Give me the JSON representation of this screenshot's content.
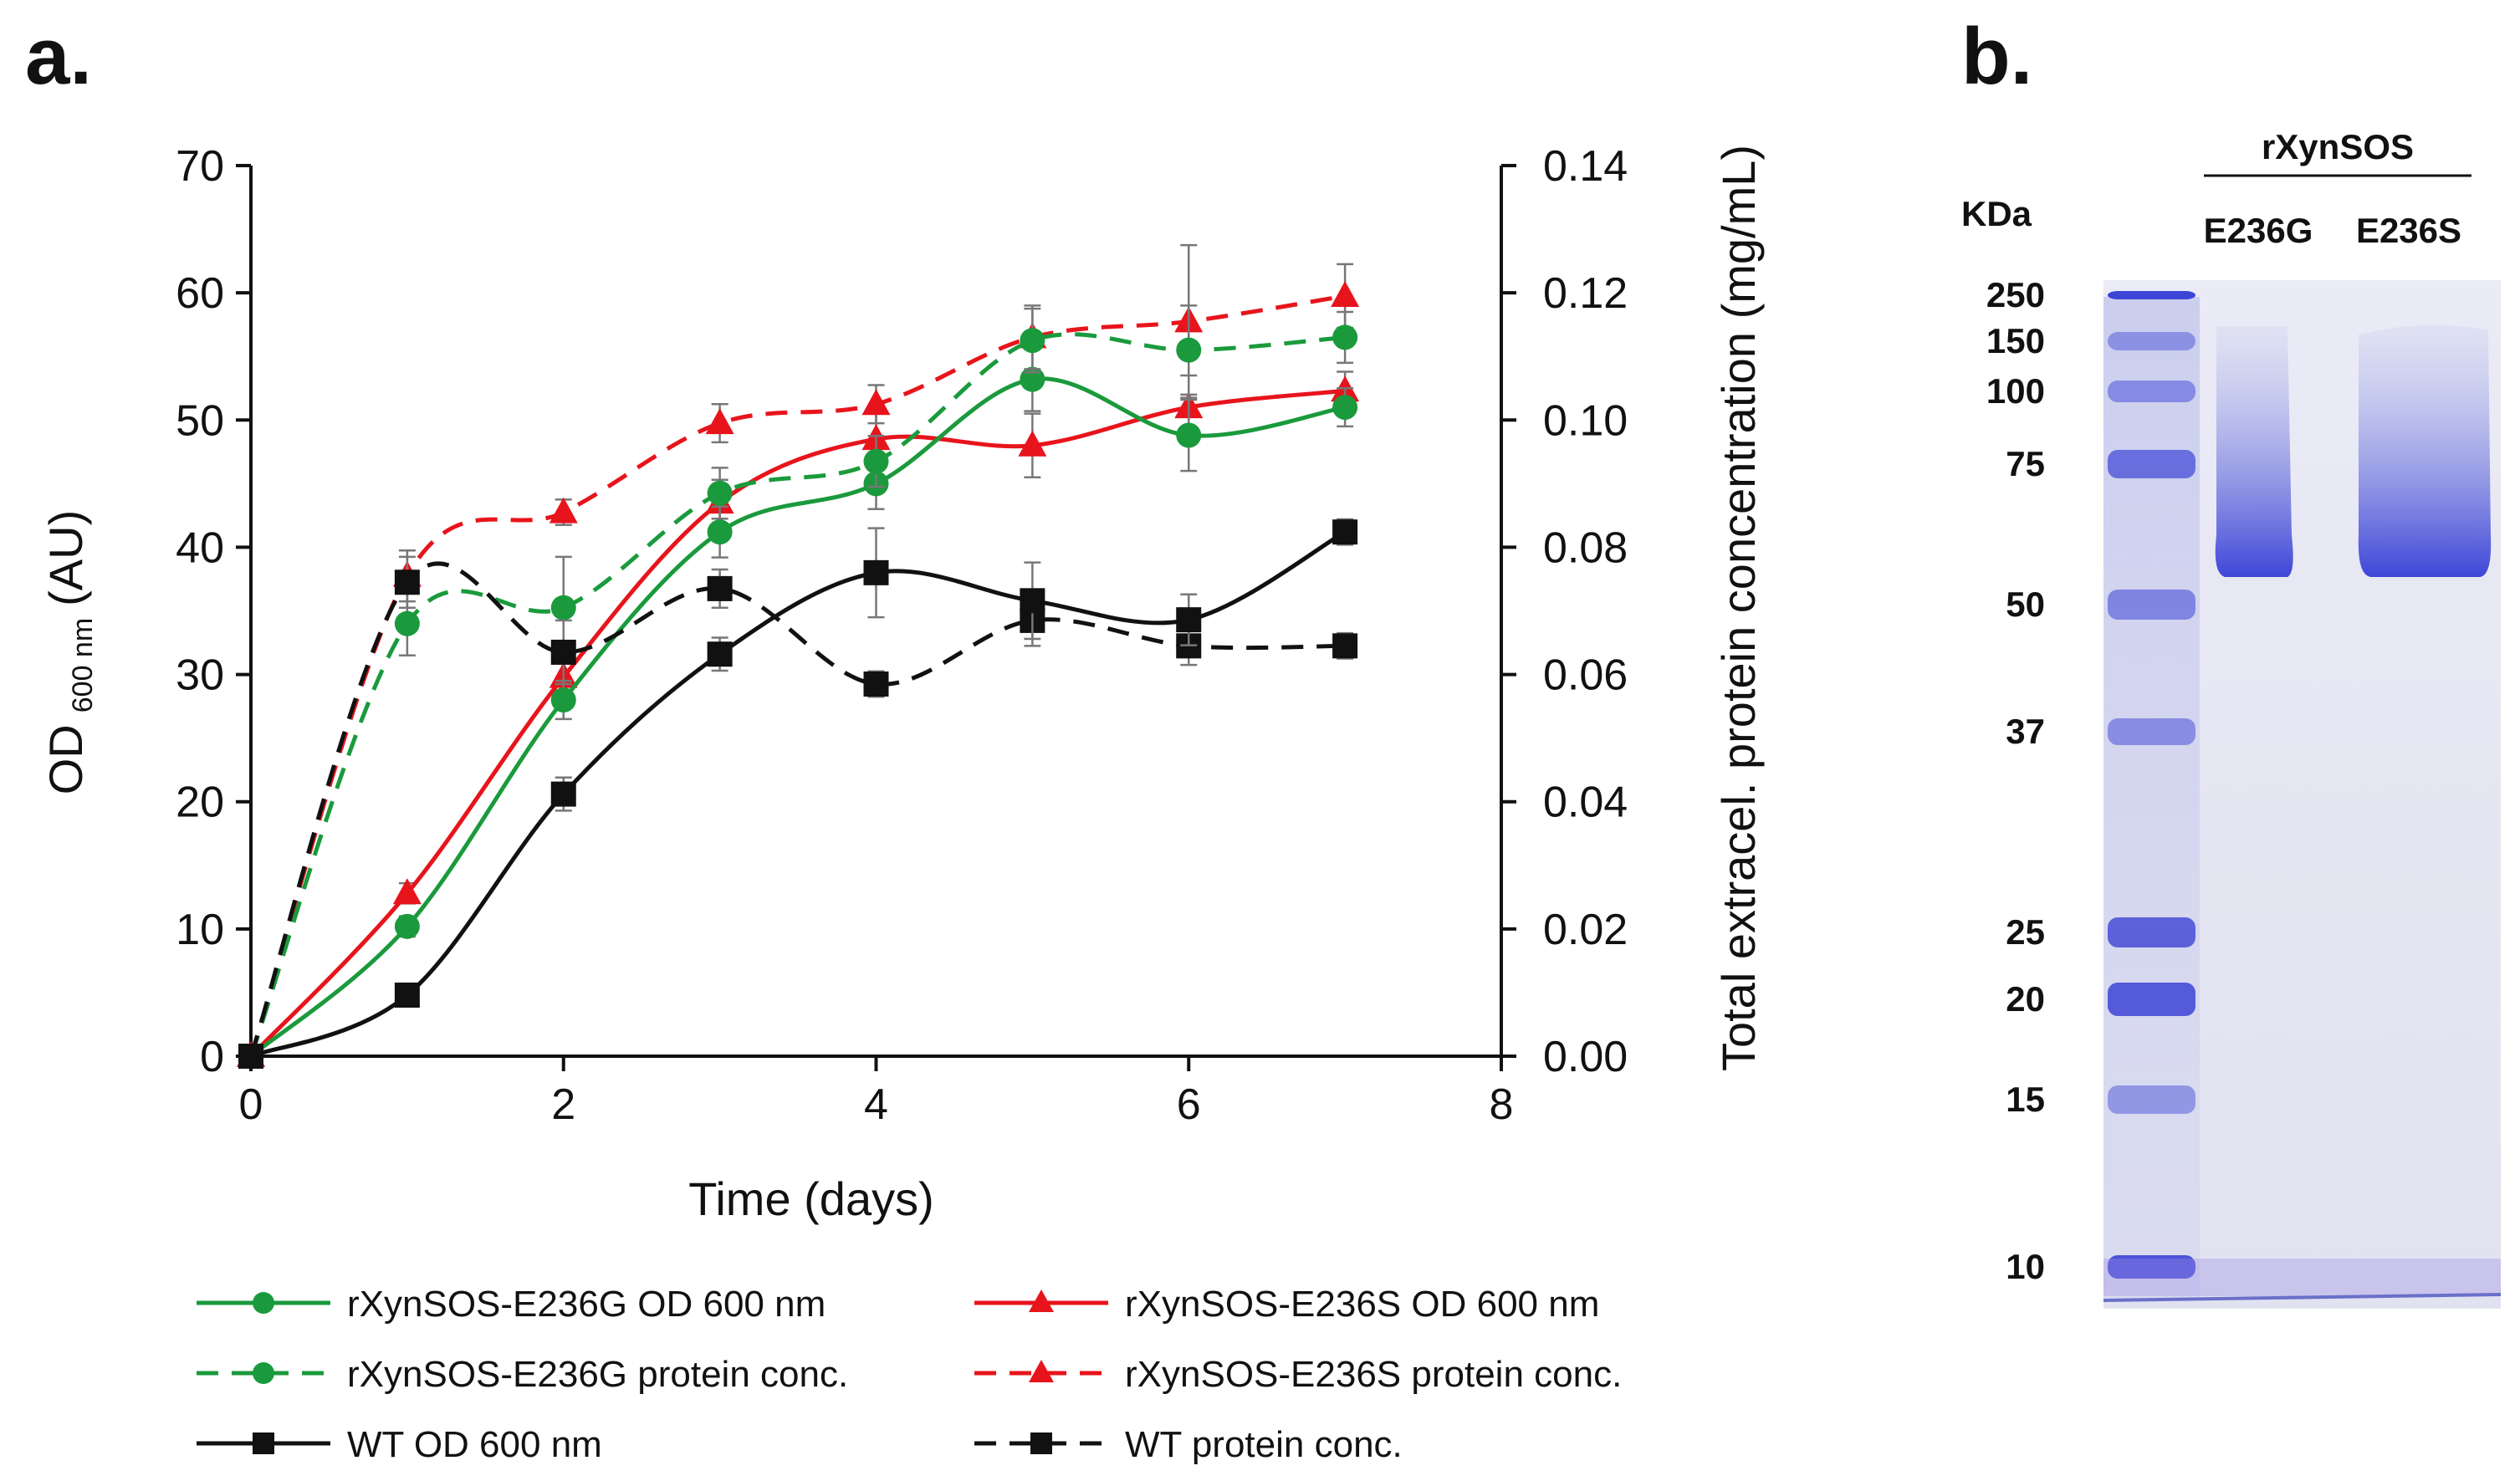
{
  "figure": {
    "panel_a_label": "a.",
    "panel_b_label": "b."
  },
  "chart_data": [
    {
      "type": "line",
      "title": "",
      "xlabel": "Time (days)",
      "ylabel": {
        "main": "OD",
        "subscript": "600 nm",
        "unit": "(AU)"
      },
      "y2label": "Total extracel. protein concentration (mg/mL)",
      "xlim": [
        0,
        8
      ],
      "ylim": [
        0,
        70
      ],
      "y2lim": [
        0,
        0.14
      ],
      "xticks": [
        "0",
        "2",
        "4",
        "6",
        "8"
      ],
      "yticks": [
        "0",
        "10",
        "20",
        "30",
        "40",
        "50",
        "60",
        "70"
      ],
      "y2ticks": [
        "0.00",
        "0.02",
        "0.04",
        "0.06",
        "0.08",
        "0.10",
        "0.12",
        "0.14"
      ],
      "grid": false,
      "legend_position": "bottom",
      "series": [
        {
          "name": "rXynSOS-E236G OD 600 nm",
          "axis": "left",
          "color": "#1a9a3c",
          "dash": "solid",
          "marker": "circle",
          "x": [
            0,
            1,
            2,
            3,
            4,
            5,
            6,
            7
          ],
          "y": [
            0,
            10.2,
            28,
            41.2,
            45,
            53.2,
            48.8,
            51
          ],
          "err": [
            0,
            0.8,
            1.5,
            2.0,
            2.0,
            2.5,
            2.8,
            1.5
          ]
        },
        {
          "name": "rXynSOS-E236S OD 600 nm",
          "axis": "left",
          "color": "#e8141c",
          "dash": "solid",
          "marker": "triangle",
          "x": [
            0,
            1,
            2,
            3,
            4,
            5,
            6,
            7
          ],
          "y": [
            0,
            12.8,
            29.8,
            43.5,
            48.5,
            48,
            51,
            52.3
          ],
          "err": [
            0,
            0.8,
            1.5,
            1.8,
            2.0,
            2.5,
            2.5,
            1.5
          ]
        },
        {
          "name": "rXynSOS-E236G protein conc.",
          "axis": "right",
          "color": "#1a9a3c",
          "dash": "dashed",
          "marker": "circle",
          "x": [
            0,
            1,
            2,
            3,
            4,
            5,
            6,
            7
          ],
          "y": [
            0,
            0.068,
            0.0705,
            0.0885,
            0.0935,
            0.1125,
            0.111,
            0.113
          ],
          "err": [
            0,
            0.005,
            0.008,
            0.004,
            0.004,
            0.005,
            0.007,
            0.004
          ]
        },
        {
          "name": "rXynSOS-E236S protein conc.",
          "axis": "right",
          "color": "#e8141c",
          "dash": "dashed",
          "marker": "triangle",
          "x": [
            0,
            1,
            2,
            3,
            4,
            5,
            6,
            7
          ],
          "y": [
            0,
            0.0755,
            0.0855,
            0.0995,
            0.1025,
            0.113,
            0.1155,
            0.1195
          ],
          "err": [
            0,
            0.004,
            0.002,
            0.003,
            0.003,
            0.005,
            0.012,
            0.005
          ]
        },
        {
          "name": "WT OD 600 nm",
          "axis": "left",
          "color": "#111111",
          "dash": "solid",
          "marker": "square",
          "x": [
            0,
            1,
            2,
            3,
            4,
            5,
            6,
            7
          ],
          "y": [
            0,
            4.8,
            20.6,
            31.6,
            38,
            35.8,
            34.3,
            41.2
          ],
          "err": [
            0,
            0.5,
            1.3,
            1.3,
            3.5,
            3.0,
            2.0,
            1.0
          ]
        },
        {
          "name": "WT protein conc.",
          "axis": "right",
          "color": "#111111",
          "dash": "dashed",
          "marker": "square",
          "x": [
            0,
            1,
            2,
            3,
            4,
            5,
            6,
            7
          ],
          "y": [
            0,
            0.0745,
            0.0635,
            0.0735,
            0.0585,
            0.0685,
            0.0645,
            0.0645
          ],
          "err": [
            0,
            0.004,
            0.005,
            0.003,
            0.002,
            0.004,
            0.003,
            0.002
          ]
        }
      ]
    },
    {
      "type": "gel",
      "title": "",
      "group_label": "rXynSOS",
      "marker_unit": "KDa",
      "lanes": [
        "E236G",
        "E236S"
      ],
      "marker_kda": [
        "250",
        "150",
        "100",
        "75",
        "50",
        "37",
        "25",
        "20",
        "15",
        "10"
      ],
      "band_approx_kda": 60
    }
  ]
}
